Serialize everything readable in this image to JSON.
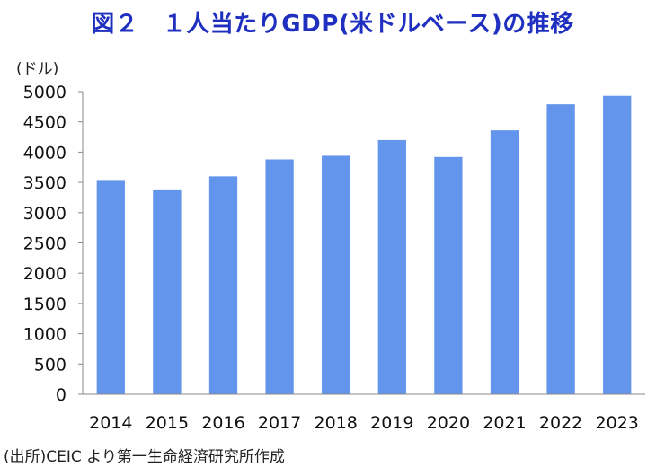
{
  "chart_data": {
    "type": "bar",
    "title": "図２　１人当たりGDP(米ドルベース)の推移",
    "ylabel": "(ドル)",
    "xlabel": "",
    "source": "(出所)CEIC より第一生命経済研究所作成",
    "categories": [
      "2014",
      "2015",
      "2016",
      "2017",
      "2018",
      "2019",
      "2020",
      "2021",
      "2022",
      "2023"
    ],
    "values": [
      3540,
      3370,
      3600,
      3880,
      3940,
      4200,
      3920,
      4360,
      4790,
      4930
    ],
    "ylim": [
      0,
      5000
    ],
    "yticks": [
      0,
      500,
      1000,
      1500,
      2000,
      2500,
      3000,
      3500,
      4000,
      4500,
      5000
    ],
    "bar_color": "#6495ed",
    "grid": false
  }
}
